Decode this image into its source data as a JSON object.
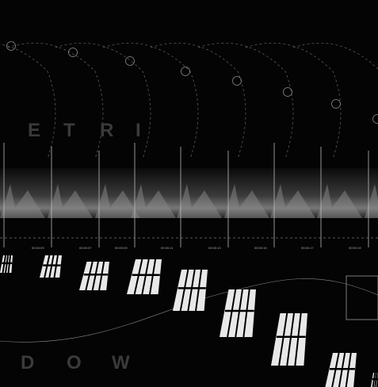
{
  "top_letters": [
    "E",
    "T",
    "R",
    "I"
  ],
  "bottom_letters": [
    "D",
    "O",
    "W"
  ],
  "timecodes": [
    "00:00:03",
    "00:00:07",
    "00:00:09",
    "00:00:11",
    "00:00:13",
    "00:00:15",
    "00:00:17",
    "00:00:19"
  ]
}
